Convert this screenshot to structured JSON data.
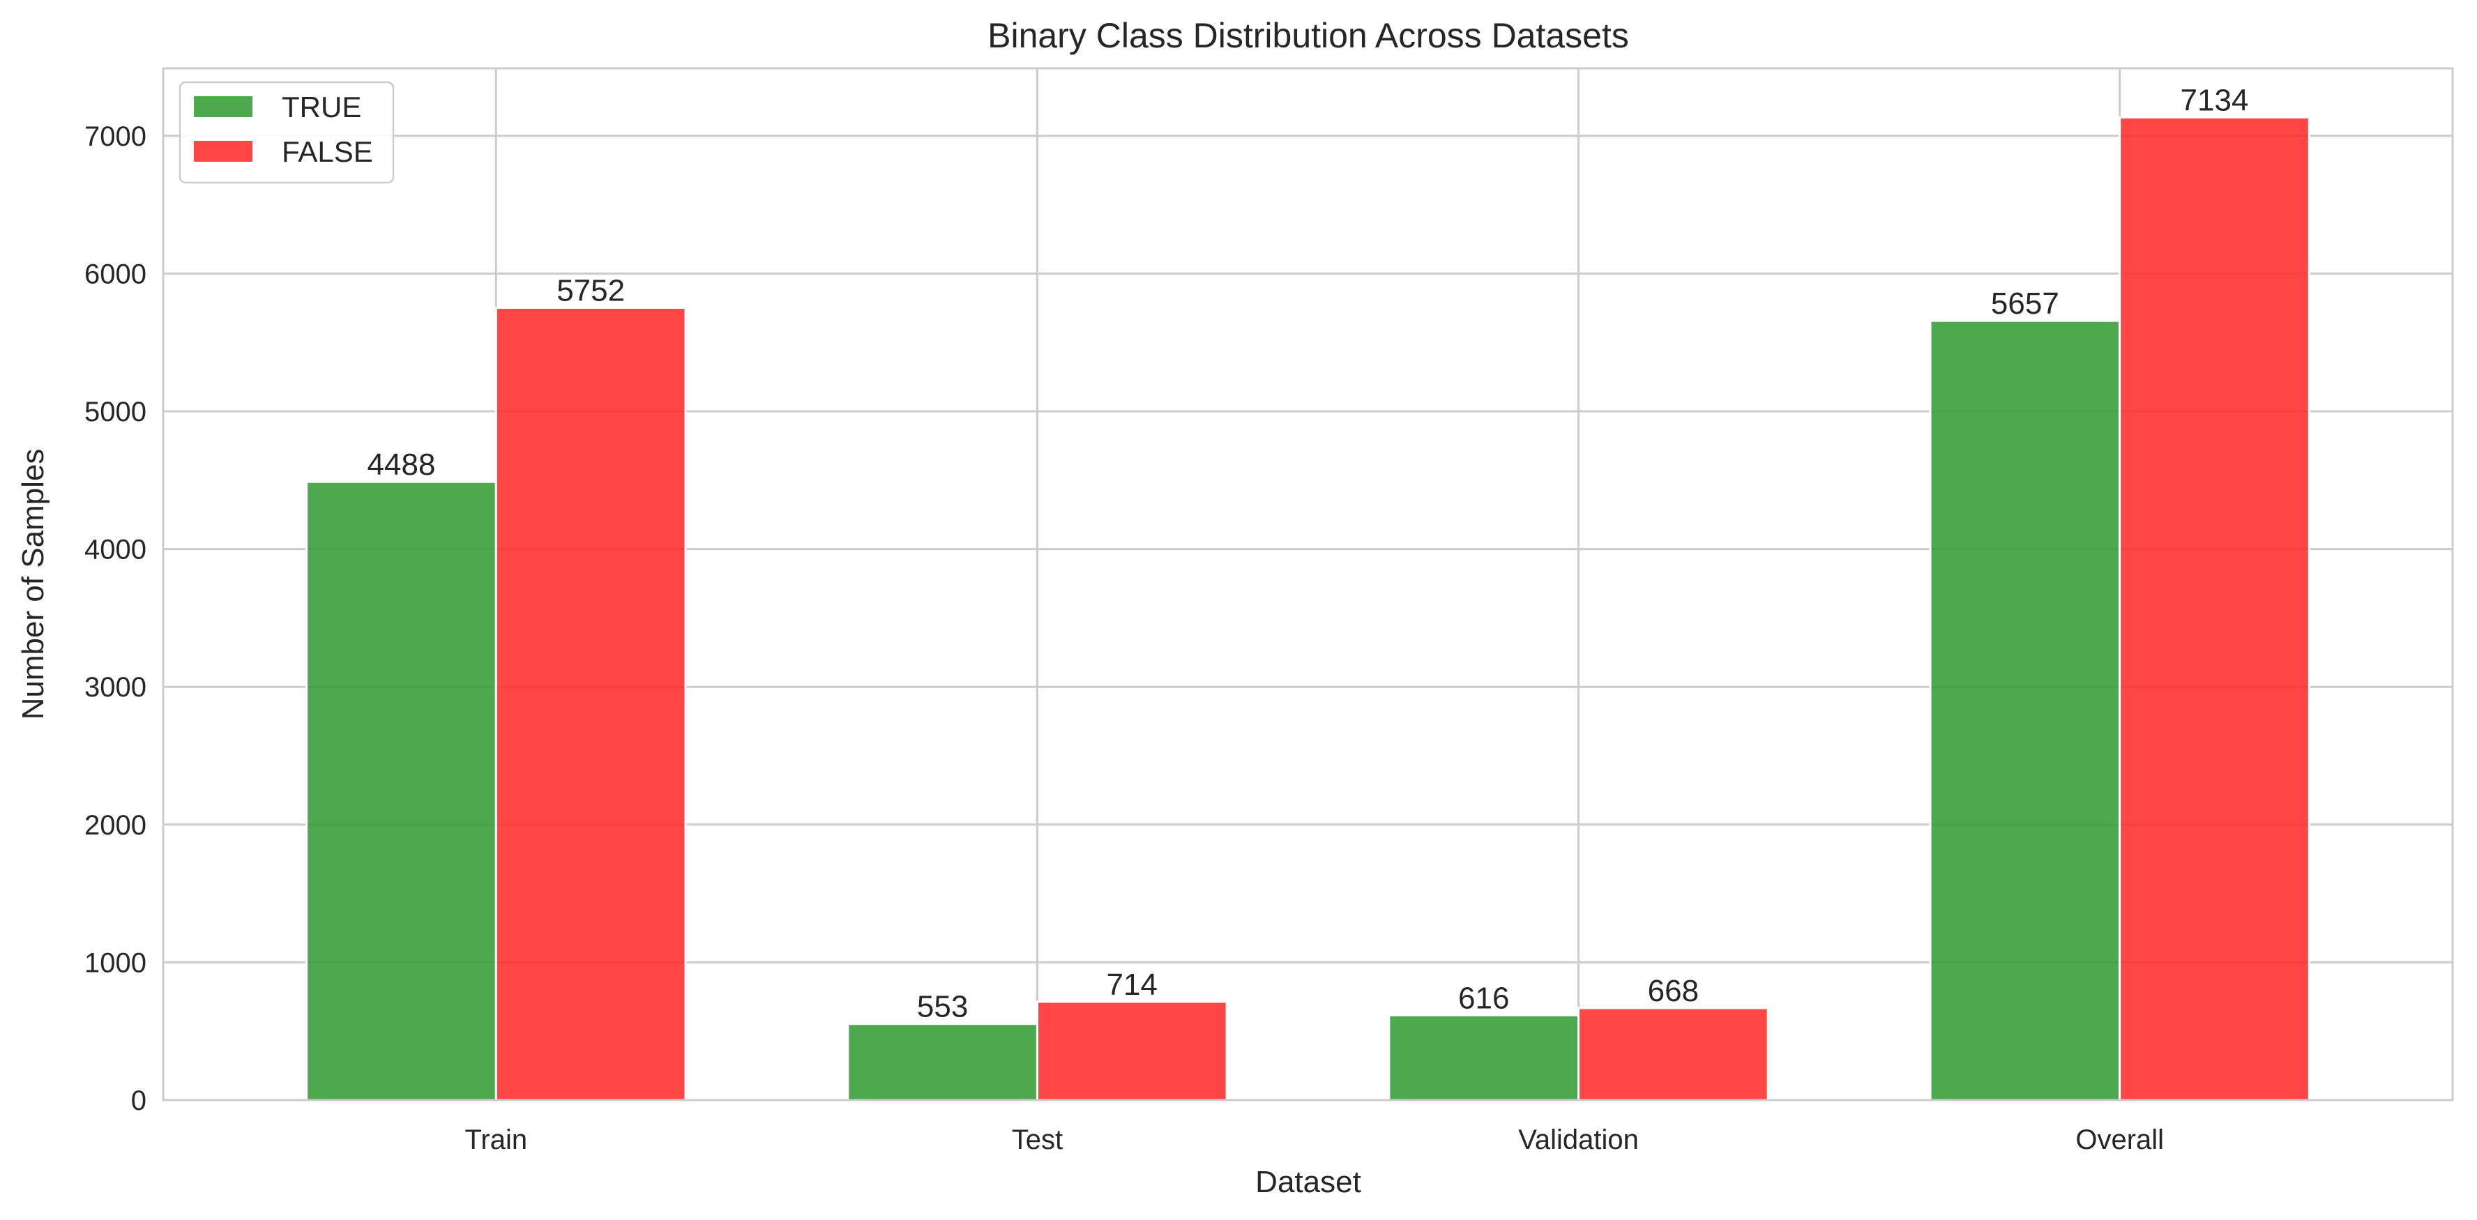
{
  "chart_data": {
    "type": "bar",
    "title": "Binary Class Distribution Across Datasets",
    "xlabel": "Dataset",
    "ylabel": "Number of Samples",
    "categories": [
      "Train",
      "Test",
      "Validation",
      "Overall"
    ],
    "series": [
      {
        "name": "TRUE",
        "values": [
          4488,
          553,
          616,
          5657
        ],
        "color": "#2e9a2e"
      },
      {
        "name": "FALSE",
        "values": [
          5752,
          714,
          668,
          7134
        ],
        "color": "#ff2626"
      }
    ],
    "ylim": [
      0,
      7490
    ],
    "yticks": [
      0,
      1000,
      2000,
      3000,
      4000,
      5000,
      6000,
      7000
    ],
    "grid": true,
    "legend_position": "top-left",
    "bar_opacity": 0.85,
    "data_labels": true
  }
}
